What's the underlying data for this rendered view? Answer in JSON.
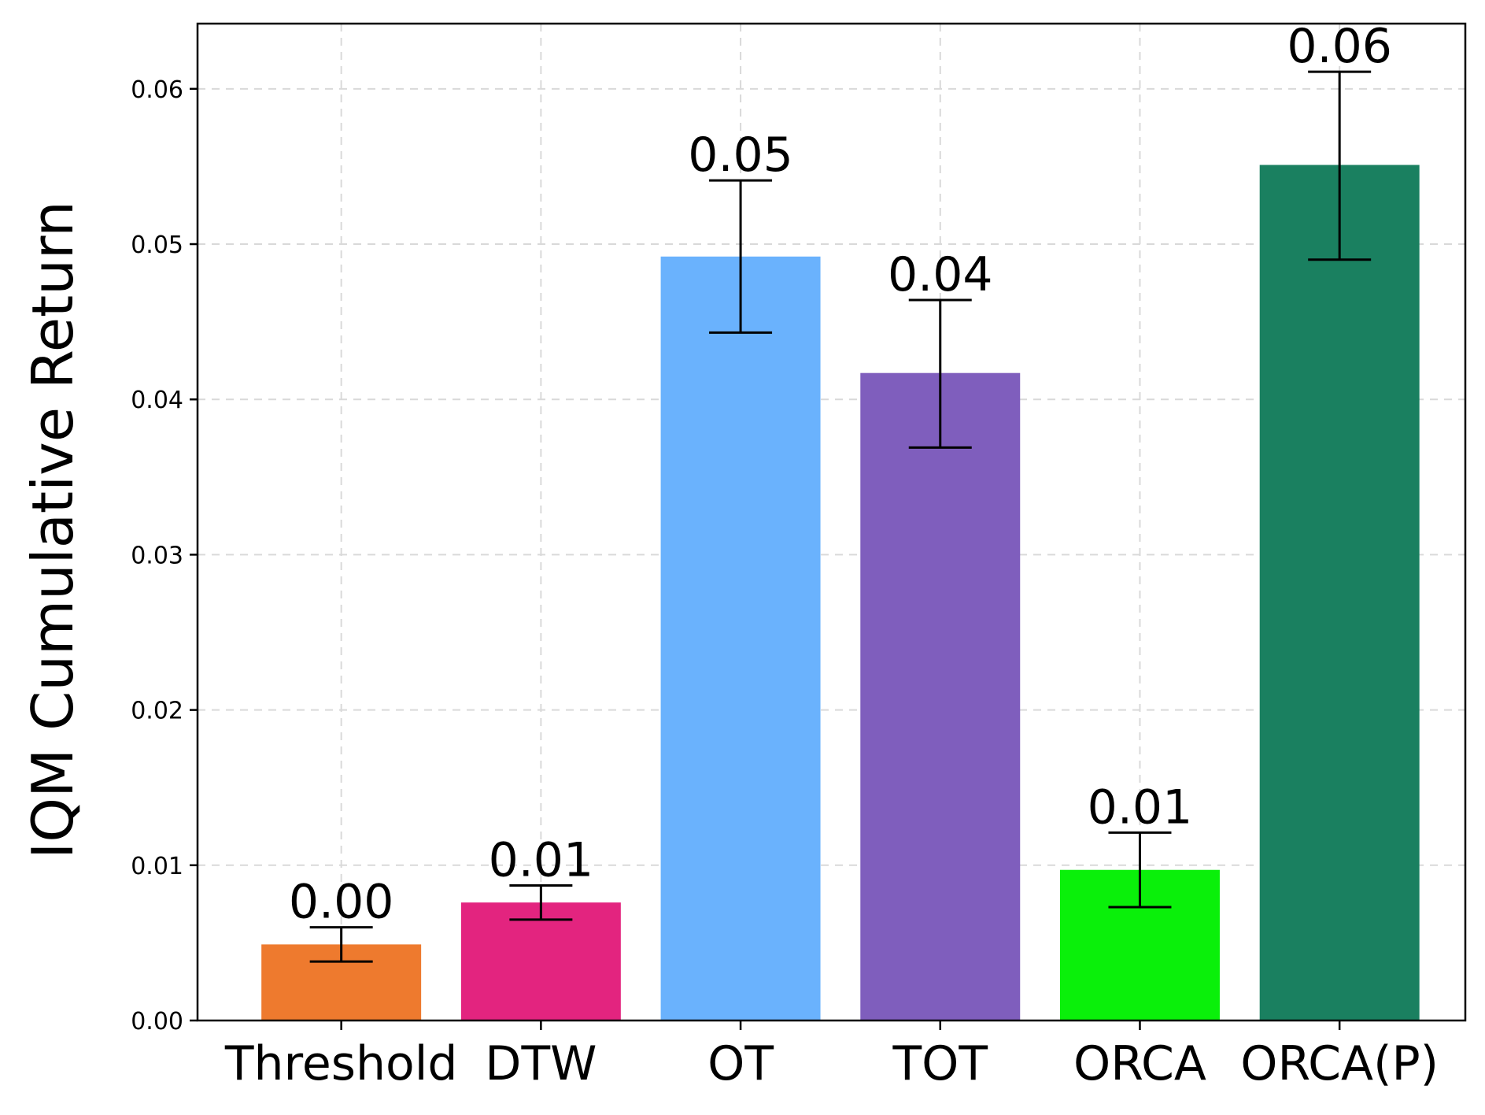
{
  "chart_data": {
    "type": "bar",
    "categories": [
      "Threshold",
      "DTW",
      "OT",
      "TOT",
      "ORCA",
      "ORCA(P)"
    ],
    "values": [
      0.0049,
      0.0076,
      0.0492,
      0.0417,
      0.0097,
      0.0551
    ],
    "error_low": [
      0.0038,
      0.0065,
      0.0443,
      0.0369,
      0.0073,
      0.049
    ],
    "error_high": [
      0.006,
      0.0087,
      0.0541,
      0.0464,
      0.0121,
      0.0611
    ],
    "value_labels": [
      "0.00",
      "0.01",
      "0.05",
      "0.04",
      "0.01",
      "0.06"
    ],
    "colors": [
      "#ee7a2e",
      "#e3247f",
      "#6ab2fd",
      "#7f5ebd",
      "#0af00a",
      "#1a8060"
    ],
    "title": "",
    "xlabel": "",
    "ylabel": "IQM Cumulative Return",
    "ylim": [
      0,
      0.0642
    ],
    "yticks": [
      0.0,
      0.01,
      0.02,
      0.03,
      0.04,
      0.05,
      0.06
    ],
    "ytick_labels": [
      "0.00",
      "0.01",
      "0.02",
      "0.03",
      "0.04",
      "0.05",
      "0.06"
    ],
    "grid": true
  }
}
